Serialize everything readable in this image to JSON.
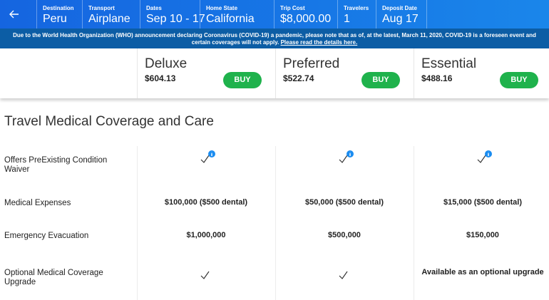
{
  "header": {
    "fields": [
      {
        "label": "Destination",
        "value": "Peru"
      },
      {
        "label": "Transport",
        "value": "Airplane"
      },
      {
        "label": "Dates",
        "value": "Sep 10 - 17"
      },
      {
        "label": "Home State",
        "value": "California"
      },
      {
        "label": "Trip Cost",
        "value": "$8,000.00"
      },
      {
        "label": "Travelers",
        "value": "1"
      },
      {
        "label": "Deposit Date",
        "value": "Aug 17"
      }
    ]
  },
  "notice": {
    "text": "Due to the World Health Organization (WHO) announcement declaring Coronavirus (COVID-19) a pandemic, please note that as of, at the latest, March 11, 2020, COVID-19 is a foreseen event and certain coverages will not apply.",
    "link": "Please read the details here."
  },
  "plans": [
    {
      "name": "Deluxe",
      "price": "$604.13",
      "button": "BUY"
    },
    {
      "name": "Preferred",
      "price": "$522.74",
      "button": "BUY"
    },
    {
      "name": "Essential",
      "price": "$488.16",
      "button": "BUY"
    }
  ],
  "section_title": "Travel Medical Coverage and Care",
  "table": {
    "rows": [
      {
        "label": "Offers PreExisting Condition Waiver",
        "cells": [
          {
            "check": true,
            "info": true
          },
          {
            "check": true,
            "info": true
          },
          {
            "check": true,
            "info": true
          }
        ]
      },
      {
        "label": "Medical Expenses",
        "cells": [
          {
            "text": "$100,000 ($500 dental)"
          },
          {
            "text": "$50,000 ($500 dental)"
          },
          {
            "text": "$15,000 ($500 dental)"
          }
        ]
      },
      {
        "label": "Emergency Evacuation",
        "cells": [
          {
            "text": "$1,000,000"
          },
          {
            "text": "$500,000"
          },
          {
            "text": "$150,000"
          }
        ]
      },
      {
        "label": "Optional Medical Coverage Upgrade",
        "cells": [
          {
            "check": true
          },
          {
            "check": true
          },
          {
            "text": "Available as an optional upgrade"
          }
        ]
      }
    ]
  }
}
